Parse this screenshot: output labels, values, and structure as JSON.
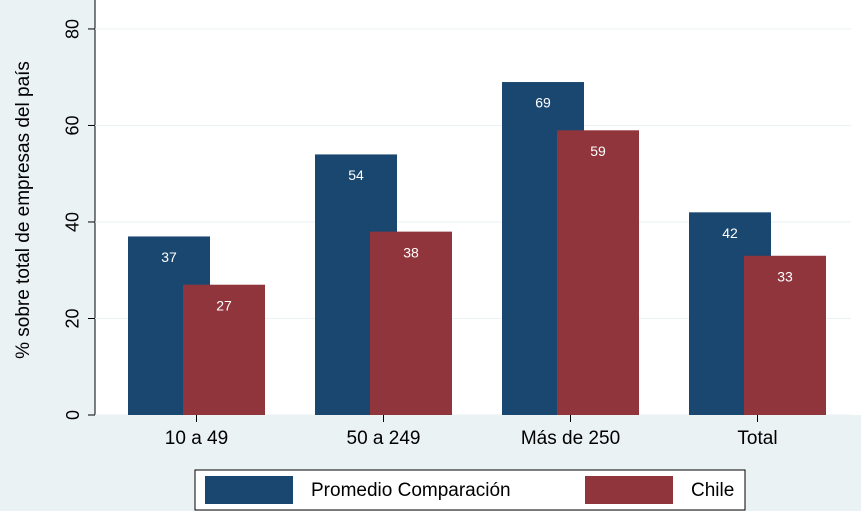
{
  "chart_data": {
    "type": "bar",
    "y_label": "% sobre total de empresas del país",
    "categories": [
      "10 a 49",
      "50 a 249",
      "Más de 250",
      "Total"
    ],
    "series": [
      {
        "name": "Promedio Comparación",
        "color": "#1a476f",
        "values": [
          37,
          54,
          69,
          42
        ]
      },
      {
        "name": "Chile",
        "color": "#90353b",
        "values": [
          27,
          38,
          59,
          33
        ]
      }
    ],
    "ylim": [
      0,
      86
    ],
    "yticks": [
      0,
      20,
      40,
      60,
      80
    ],
    "grid": true,
    "legend": "bottom"
  }
}
